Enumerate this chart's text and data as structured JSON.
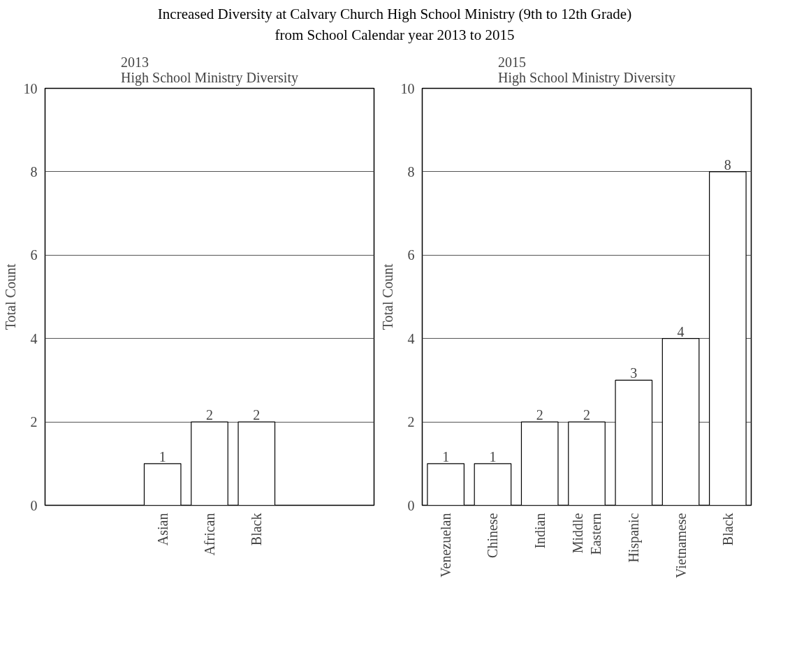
{
  "chart_data": [
    {
      "type": "bar",
      "title": "Increased Diversity at Calvary Church High School Ministry (9th to 12th Grade)\nfrom School Calendar year 2013 to 2015",
      "subtitle": "2013\nHigh School Ministry Diversity",
      "ylabel": "Total Count",
      "categories": [
        null,
        null,
        "Asian",
        "African",
        "Black",
        null,
        null
      ],
      "values": [
        null,
        null,
        1,
        2,
        2,
        null,
        null
      ],
      "color": "#ffffff",
      "ylim": [
        0,
        10
      ],
      "yticks": [
        0,
        2,
        4,
        6,
        8,
        10
      ],
      "grid": "y",
      "data_labels": true
    },
    {
      "type": "bar",
      "subtitle": "2015\nHigh School Ministry Diversity",
      "ylabel": "Total Count",
      "categories": [
        "Venezuelan",
        "Chinese",
        "Indian",
        "Middle\nEastern",
        "Hispanic",
        "Vietnamese",
        "Black"
      ],
      "values": [
        1,
        1,
        2,
        2,
        3,
        4,
        8
      ],
      "color": "#ffffff",
      "ylim": [
        0,
        10
      ],
      "yticks": [
        0,
        2,
        4,
        6,
        8,
        10
      ],
      "grid": "y",
      "data_labels": true
    }
  ]
}
